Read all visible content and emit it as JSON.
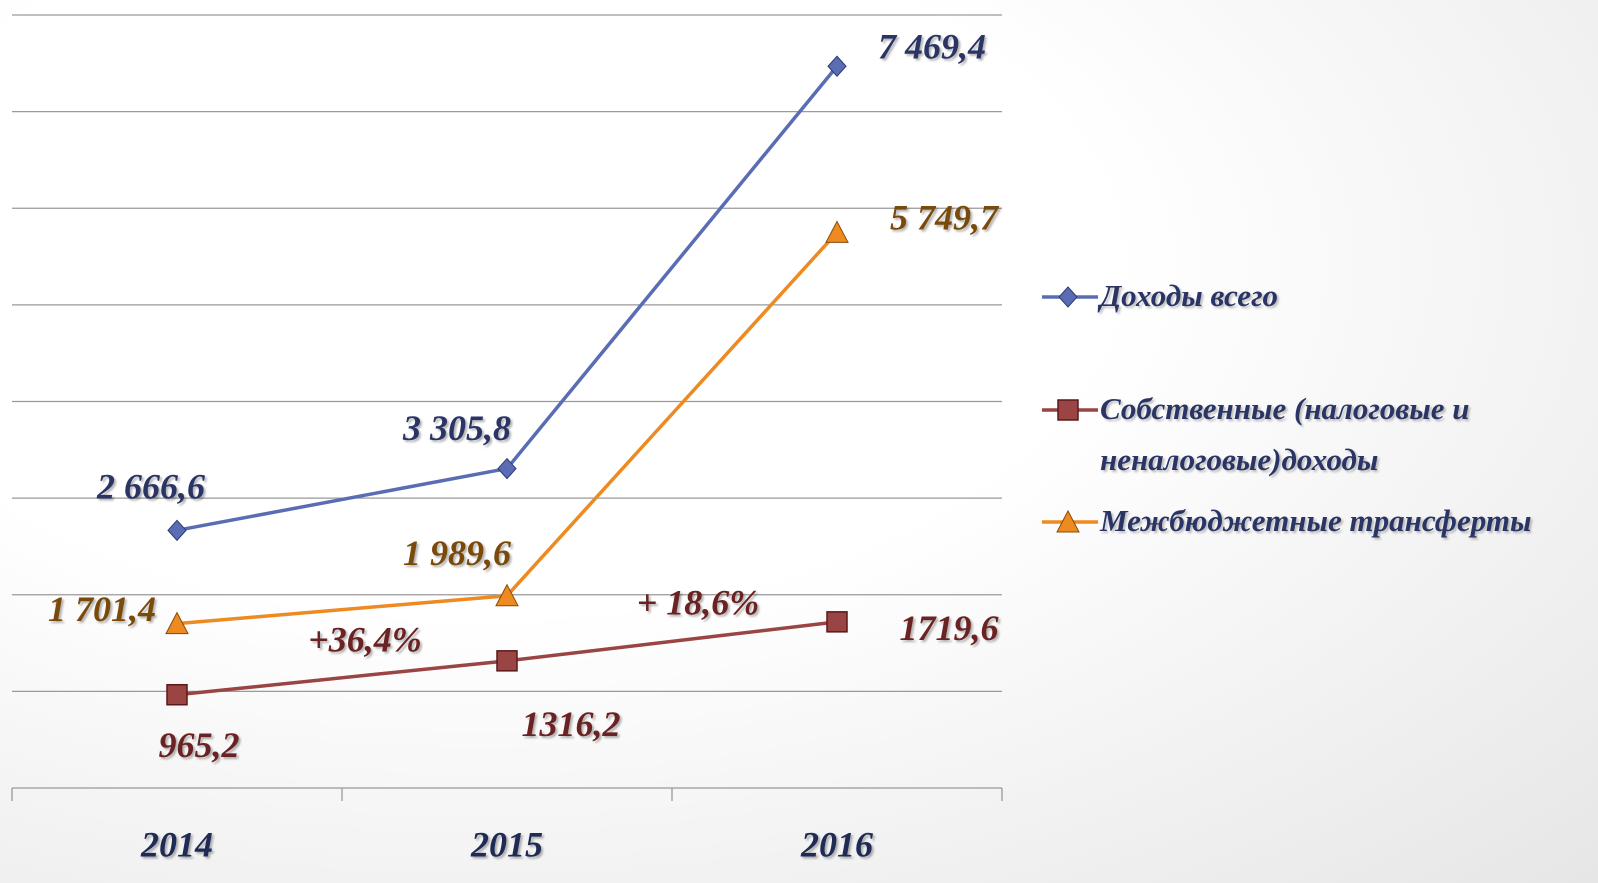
{
  "chart_data": {
    "type": "line",
    "categories": [
      "2014",
      "2015",
      "2016"
    ],
    "series": [
      {
        "name": "Доходы всего",
        "color": "#5a6db4",
        "marker": "diamond",
        "values": [
          2666.6,
          3305.8,
          7469.4
        ],
        "value_labels": [
          "2 666,6",
          "3 305,8",
          "7 469,4"
        ]
      },
      {
        "name": "Собственные (налоговые и неналоговые)доходы",
        "color": "#9a4444",
        "marker": "square",
        "values": [
          965.2,
          1316.2,
          1719.6
        ],
        "value_labels": [
          "965,2",
          "1316,2",
          "1719,6"
        ]
      },
      {
        "name": "Межбюджетные трансферты",
        "color": "#ee8a22",
        "marker": "triangle",
        "values": [
          1701.4,
          1989.6,
          5749.7
        ],
        "value_labels": [
          "1 701,4",
          "1 989,6",
          "5 749,7"
        ]
      }
    ],
    "annotations": [
      "+36,4%",
      "+ 18,6%"
    ],
    "ylim": [
      0,
      8000
    ],
    "yticks": [
      0,
      1000,
      2000,
      3000,
      4000,
      5000,
      6000,
      7000,
      8000
    ],
    "grid": true,
    "legend": "right"
  }
}
